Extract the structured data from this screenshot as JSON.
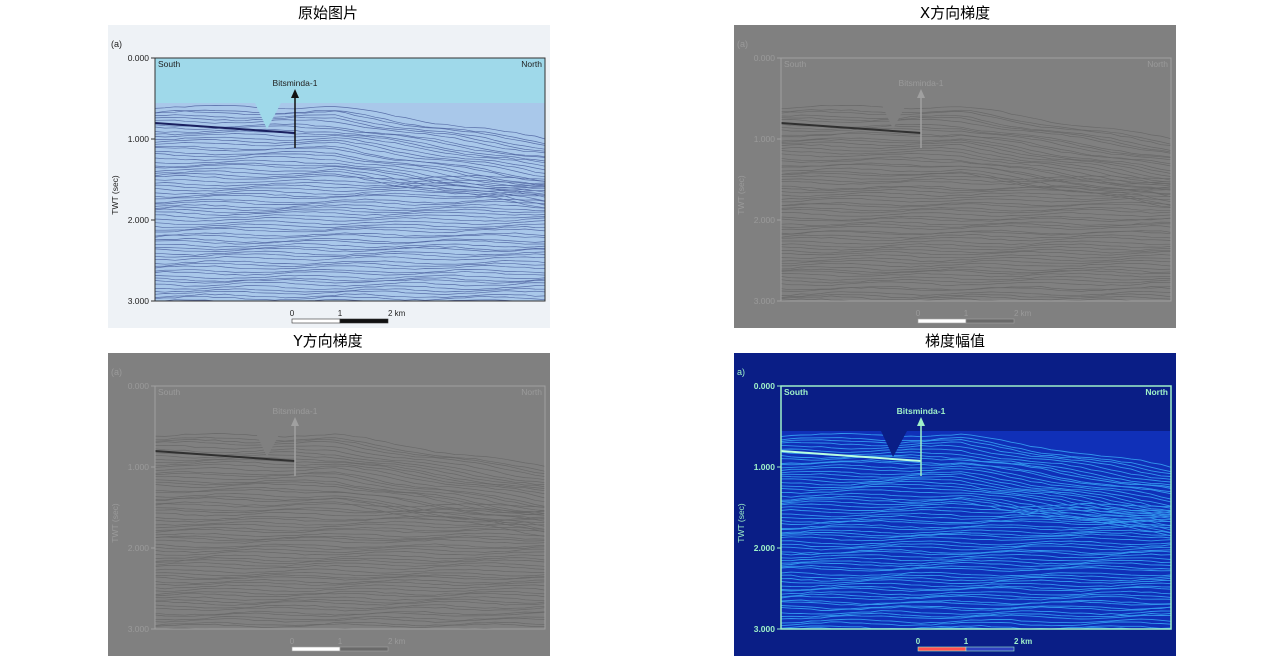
{
  "panels": [
    {
      "title": "原始图片",
      "variant": "original",
      "figure_tag": "(a)",
      "yaxis_label": "TWT (sec)",
      "yticks": [
        "0.000",
        "1.000",
        "2.000",
        "3.000"
      ],
      "left_label": "South",
      "right_label": "North",
      "well_label": "Bitsminda-1",
      "scale_ticks": [
        "0",
        "1",
        "2 km"
      ]
    },
    {
      "title": "X方向梯度",
      "variant": "x-gradient",
      "figure_tag": "(a)",
      "yaxis_label": "TWT (sec)",
      "yticks": [
        "0.000",
        "1.000",
        "2.000",
        "3.000"
      ],
      "left_label": "South",
      "right_label": "North",
      "well_label": "Bitsminda-1",
      "scale_ticks": [
        "0",
        "1",
        "2 km"
      ]
    },
    {
      "title": "Y方向梯度",
      "variant": "y-gradient",
      "figure_tag": "(a)",
      "yaxis_label": "TWT (sec)",
      "yticks": [
        "0.000",
        "1.000",
        "2.000",
        "3.000"
      ],
      "left_label": "South",
      "right_label": "North",
      "well_label": "Bitsminda-1",
      "scale_ticks": [
        "0",
        "1",
        "2 km"
      ]
    },
    {
      "title": "梯度幅值",
      "variant": "magnitude",
      "figure_tag": "a)",
      "yaxis_label": "TWT (sec)",
      "yticks": [
        "0.000",
        "1.000",
        "2.000",
        "3.000"
      ],
      "left_label": "South",
      "right_label": "North",
      "well_label": "Bitsminda-1",
      "scale_ticks": [
        "0",
        "1",
        "2 km"
      ]
    }
  ],
  "colors": {
    "original_bg": "#eef2f6",
    "original_sky": "#9fd9ea",
    "original_seismic": "#a9c8ea",
    "original_line": "#2e3f86",
    "gray_bg": "#808080",
    "magnitude_bg": "#0a1e86",
    "magnitude_line": "#3db8ff"
  }
}
